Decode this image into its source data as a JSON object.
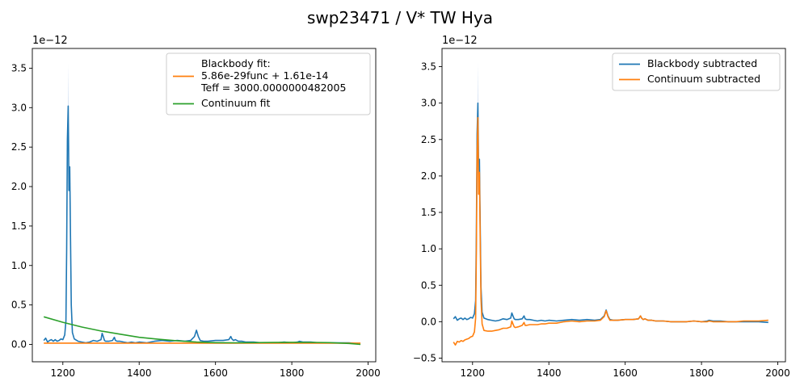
{
  "figure": {
    "title": "swp23471 / V* TW Hya"
  },
  "colors": {
    "blue": "#1f77b4",
    "orange": "#ff7f0e",
    "green": "#2ca02c",
    "band": "#aec7e8",
    "axis": "#000000"
  },
  "chart_data": [
    {
      "type": "line",
      "title": "",
      "xlabel": "",
      "ylabel": "",
      "y_multiplier_label": "1e−12",
      "xlim": [
        1120,
        2020
      ],
      "ylim": [
        -0.22,
        3.75
      ],
      "xticks": [
        1200,
        1400,
        1600,
        1800,
        2000
      ],
      "xtick_labels": [
        "1200",
        "1400",
        "1600",
        "1800",
        "2000"
      ],
      "yticks": [
        0.0,
        0.5,
        1.0,
        1.5,
        2.0,
        2.5,
        3.0,
        3.5
      ],
      "ytick_labels": [
        "0.0",
        "0.5",
        "1.0",
        "1.5",
        "2.0",
        "2.5",
        "3.0",
        "3.5"
      ],
      "grid": false,
      "legend_position": "upper-right",
      "series": [
        {
          "name": "",
          "role": "spectrum",
          "color": "#1f77b4",
          "x": [
            1150,
            1155,
            1160,
            1165,
            1170,
            1175,
            1180,
            1185,
            1190,
            1195,
            1200,
            1205,
            1208,
            1210,
            1212,
            1214,
            1215,
            1216,
            1218,
            1220,
            1222,
            1225,
            1230,
            1240,
            1250,
            1260,
            1270,
            1280,
            1290,
            1300,
            1303,
            1306,
            1309,
            1312,
            1320,
            1330,
            1335,
            1338,
            1342,
            1350,
            1360,
            1370,
            1380,
            1390,
            1400,
            1420,
            1440,
            1460,
            1480,
            1500,
            1520,
            1535,
            1545,
            1550,
            1555,
            1560,
            1570,
            1580,
            1600,
            1620,
            1635,
            1640,
            1643,
            1647,
            1652,
            1660,
            1670,
            1680,
            1700,
            1720,
            1740,
            1760,
            1780,
            1800,
            1815,
            1820,
            1830,
            1850,
            1870,
            1890,
            1910,
            1930,
            1950,
            1975
          ],
          "y": [
            0.05,
            0.08,
            0.03,
            0.05,
            0.06,
            0.04,
            0.06,
            0.04,
            0.05,
            0.07,
            0.06,
            0.12,
            0.3,
            1.2,
            2.6,
            3.02,
            2.5,
            1.95,
            2.25,
            1.4,
            0.5,
            0.15,
            0.07,
            0.04,
            0.03,
            0.02,
            0.03,
            0.05,
            0.04,
            0.06,
            0.14,
            0.1,
            0.05,
            0.04,
            0.04,
            0.05,
            0.09,
            0.05,
            0.04,
            0.04,
            0.03,
            0.02,
            0.03,
            0.02,
            0.03,
            0.02,
            0.04,
            0.05,
            0.04,
            0.05,
            0.04,
            0.05,
            0.1,
            0.18,
            0.1,
            0.05,
            0.04,
            0.04,
            0.05,
            0.05,
            0.06,
            0.1,
            0.07,
            0.05,
            0.06,
            0.04,
            0.04,
            0.03,
            0.03,
            0.02,
            0.02,
            0.02,
            0.03,
            0.02,
            0.03,
            0.04,
            0.03,
            0.03,
            0.02,
            0.02,
            0.02,
            0.02,
            0.02,
            0.01
          ]
        },
        {
          "name": "Blackbody fit:\n5.86e-29func + 1.61e-14\nTeff = 3000.0000000482005",
          "role": "blackbody-fit",
          "color": "#ff7f0e",
          "x": [
            1150,
            1300,
            1500,
            1700,
            1900,
            1980
          ],
          "y": [
            0.016,
            0.016,
            0.016,
            0.016,
            0.016,
            0.016
          ]
        },
        {
          "name": "Continuum fit",
          "role": "continuum-fit",
          "color": "#2ca02c",
          "x": [
            1150,
            1200,
            1250,
            1300,
            1350,
            1400,
            1450,
            1500,
            1550,
            1600,
            1650,
            1700,
            1750,
            1800,
            1850,
            1900,
            1950,
            1980
          ],
          "y": [
            0.35,
            0.28,
            0.22,
            0.17,
            0.13,
            0.09,
            0.065,
            0.045,
            0.03,
            0.022,
            0.02,
            0.022,
            0.025,
            0.027,
            0.026,
            0.022,
            0.012,
            0.0
          ]
        }
      ]
    },
    {
      "type": "line",
      "title": "",
      "xlabel": "",
      "ylabel": "",
      "y_multiplier_label": "1e−12",
      "xlim": [
        1120,
        2020
      ],
      "ylim": [
        -0.55,
        3.75
      ],
      "xticks": [
        1200,
        1400,
        1600,
        1800,
        2000
      ],
      "xtick_labels": [
        "1200",
        "1400",
        "1600",
        "1800",
        "2000"
      ],
      "yticks": [
        -0.5,
        0.0,
        0.5,
        1.0,
        1.5,
        2.0,
        2.5,
        3.0,
        3.5
      ],
      "ytick_labels": [
        "−0.5",
        "0.0",
        "0.5",
        "1.0",
        "1.5",
        "2.0",
        "2.5",
        "3.0",
        "3.5"
      ],
      "grid": false,
      "legend_position": "upper-right",
      "series": [
        {
          "name": "Blackbody subtracted",
          "role": "bb-subtracted",
          "color": "#1f77b4",
          "x": [
            1150,
            1155,
            1160,
            1165,
            1170,
            1175,
            1180,
            1185,
            1190,
            1195,
            1200,
            1205,
            1208,
            1210,
            1212,
            1214,
            1215,
            1216,
            1218,
            1220,
            1222,
            1225,
            1230,
            1240,
            1250,
            1260,
            1270,
            1280,
            1290,
            1300,
            1303,
            1306,
            1309,
            1312,
            1320,
            1330,
            1335,
            1338,
            1342,
            1350,
            1360,
            1370,
            1380,
            1390,
            1400,
            1420,
            1440,
            1460,
            1480,
            1500,
            1520,
            1535,
            1545,
            1550,
            1555,
            1560,
            1570,
            1580,
            1600,
            1620,
            1635,
            1640,
            1643,
            1647,
            1652,
            1660,
            1670,
            1680,
            1700,
            1720,
            1740,
            1760,
            1780,
            1800,
            1815,
            1820,
            1830,
            1850,
            1870,
            1890,
            1910,
            1930,
            1950,
            1975
          ],
          "y": [
            0.04,
            0.07,
            0.02,
            0.04,
            0.05,
            0.03,
            0.05,
            0.03,
            0.04,
            0.06,
            0.05,
            0.11,
            0.29,
            1.19,
            2.58,
            3.0,
            2.48,
            1.93,
            2.23,
            1.38,
            0.48,
            0.13,
            0.05,
            0.03,
            0.02,
            0.01,
            0.02,
            0.04,
            0.03,
            0.05,
            0.12,
            0.08,
            0.04,
            0.03,
            0.03,
            0.04,
            0.08,
            0.04,
            0.03,
            0.03,
            0.02,
            0.01,
            0.02,
            0.01,
            0.02,
            0.01,
            0.02,
            0.03,
            0.02,
            0.03,
            0.02,
            0.03,
            0.08,
            0.16,
            0.08,
            0.03,
            0.02,
            0.02,
            0.03,
            0.03,
            0.04,
            0.08,
            0.05,
            0.03,
            0.04,
            0.02,
            0.02,
            0.01,
            0.01,
            0.0,
            0.0,
            0.0,
            0.01,
            0.0,
            0.01,
            0.02,
            0.01,
            0.01,
            0.0,
            0.0,
            0.0,
            0.0,
            0.0,
            -0.01
          ]
        },
        {
          "name": "Continuum subtracted",
          "role": "cont-subtracted",
          "color": "#ff7f0e",
          "x": [
            1150,
            1155,
            1160,
            1165,
            1170,
            1175,
            1180,
            1185,
            1190,
            1195,
            1200,
            1205,
            1208,
            1210,
            1212,
            1214,
            1215,
            1216,
            1218,
            1220,
            1222,
            1225,
            1230,
            1240,
            1250,
            1260,
            1270,
            1280,
            1290,
            1300,
            1303,
            1306,
            1309,
            1312,
            1320,
            1330,
            1335,
            1338,
            1342,
            1350,
            1360,
            1370,
            1380,
            1390,
            1400,
            1420,
            1440,
            1460,
            1480,
            1500,
            1520,
            1535,
            1545,
            1550,
            1555,
            1560,
            1570,
            1580,
            1600,
            1620,
            1635,
            1640,
            1643,
            1647,
            1652,
            1660,
            1670,
            1680,
            1700,
            1720,
            1740,
            1760,
            1780,
            1800,
            1815,
            1820,
            1830,
            1850,
            1870,
            1890,
            1910,
            1930,
            1950,
            1975
          ],
          "y": [
            -0.28,
            -0.32,
            -0.27,
            -0.28,
            -0.26,
            -0.27,
            -0.25,
            -0.24,
            -0.23,
            -0.21,
            -0.2,
            -0.14,
            0.05,
            0.95,
            2.3,
            2.8,
            2.25,
            1.75,
            2.05,
            1.2,
            0.32,
            -0.03,
            -0.12,
            -0.13,
            -0.13,
            -0.12,
            -0.11,
            -0.09,
            -0.09,
            -0.07,
            0.01,
            -0.03,
            -0.07,
            -0.08,
            -0.07,
            -0.05,
            -0.01,
            -0.05,
            -0.05,
            -0.04,
            -0.04,
            -0.04,
            -0.03,
            -0.03,
            -0.02,
            -0.02,
            0.0,
            0.01,
            0.0,
            0.01,
            0.01,
            0.02,
            0.07,
            0.15,
            0.07,
            0.02,
            0.02,
            0.02,
            0.03,
            0.03,
            0.04,
            0.08,
            0.05,
            0.03,
            0.04,
            0.02,
            0.02,
            0.01,
            0.01,
            0.0,
            0.0,
            0.0,
            0.01,
            0.0,
            0.0,
            0.01,
            0.0,
            0.0,
            0.0,
            0.0,
            0.01,
            0.01,
            0.01,
            0.02
          ]
        }
      ]
    }
  ]
}
